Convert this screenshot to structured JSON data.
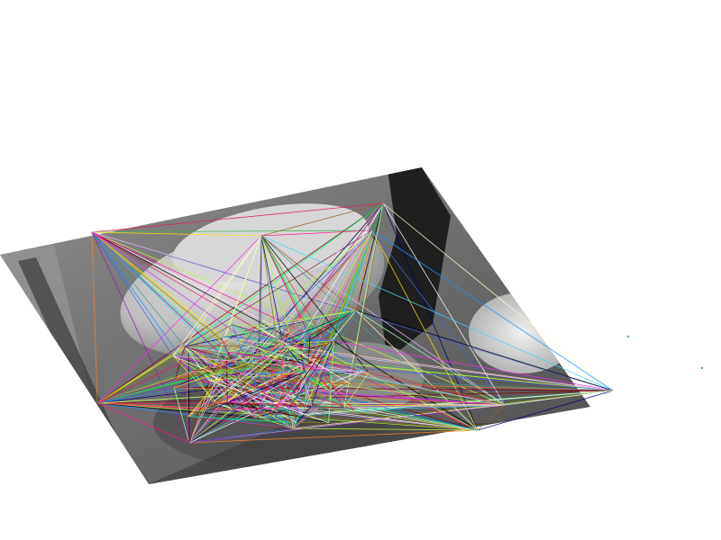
{
  "scene": {
    "kind": "warped-grayscale-photo-with-feature-match-lines",
    "background": "#ffffff",
    "photo_tones": {
      "dark": "#2a2a2a",
      "mid": "#7b7b7b",
      "light": "#c9c9c9",
      "highlight": "#eeeeee"
    },
    "match_line_colors": [
      "#e6194b",
      "#3cb44b",
      "#ffe119",
      "#4363d8",
      "#f58231",
      "#911eb4",
      "#42d4f4",
      "#f032e6",
      "#bfef45",
      "#fabed4",
      "#469990",
      "#dcbeff",
      "#9a6324",
      "#fffac8",
      "#800000",
      "#aaffc3",
      "#808000",
      "#000075",
      "#ffffff",
      "#000000",
      "#00ff7f",
      "#ff1493",
      "#1e90ff",
      "#adff2f"
    ]
  }
}
